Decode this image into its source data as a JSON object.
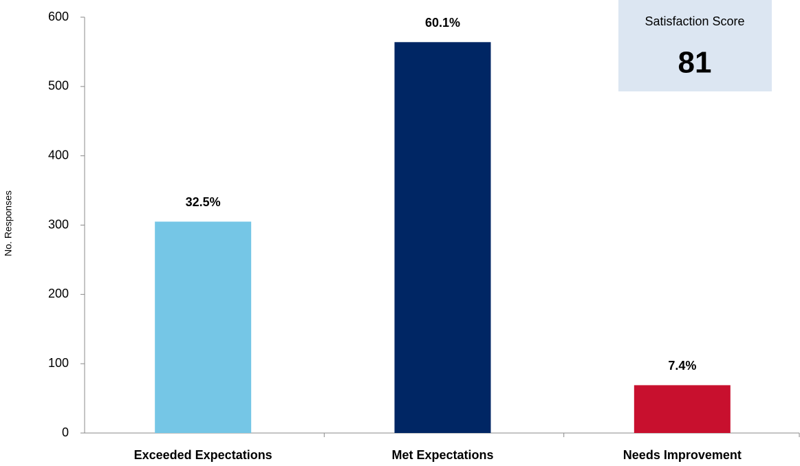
{
  "chart_data": {
    "type": "bar",
    "y_label": "No. Responses",
    "categories": [
      "Exceeded Expectations",
      "Met Expectations",
      "Needs Improvement"
    ],
    "values": [
      305,
      564,
      69
    ],
    "share_labels": [
      "32.5%",
      "60.1%",
      "7.4%"
    ],
    "colors": [
      "#75c6e6",
      "#002664",
      "#c8102e"
    ],
    "ylim": [
      0,
      600
    ],
    "yticks": [
      0,
      100,
      200,
      300,
      400,
      500,
      600
    ],
    "grid": false,
    "score_box": {
      "label": "Satisfaction Score",
      "value": 81
    }
  }
}
